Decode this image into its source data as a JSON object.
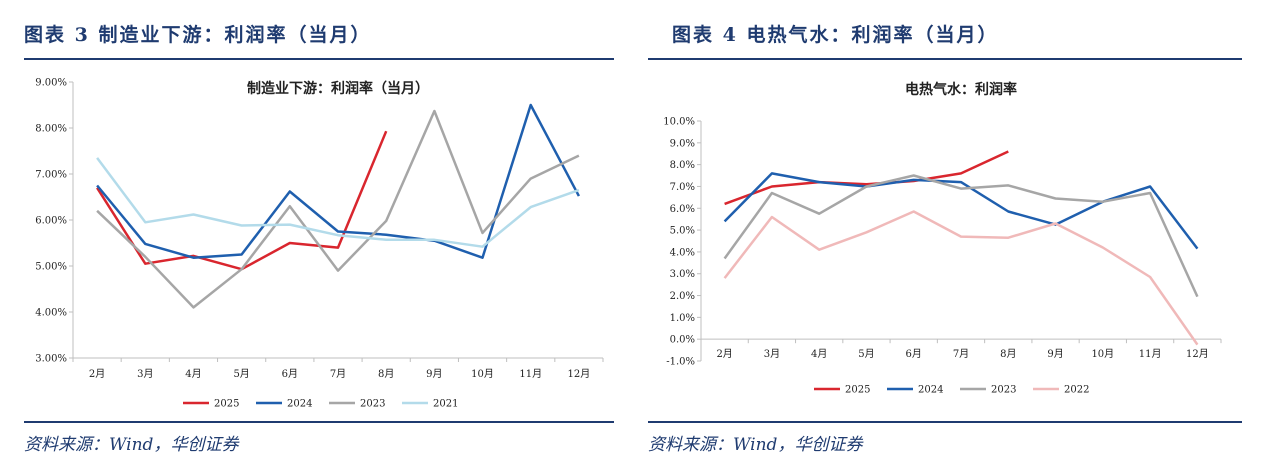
{
  "colors": {
    "y2025": "#d9262e",
    "y2024": "#1f5fae",
    "y2023": "#a6a6a6",
    "y2021": "#b3dbea",
    "y2022": "#f0b9b9",
    "accent": "#1f3b70"
  },
  "left": {
    "fig_title": "图表 3    制造业下游：利润率（当月）",
    "source": "资料来源：Wind，华创证券"
  },
  "right": {
    "fig_title": "图表 4    电热气水：利润率（当月）",
    "source": "资料来源：Wind，华创证券"
  },
  "chart_data": [
    {
      "type": "line",
      "title": "制造业下游：利润率（当月）",
      "categories": [
        "2月",
        "3月",
        "4月",
        "5月",
        "6月",
        "7月",
        "8月",
        "9月",
        "10月",
        "11月",
        "12月"
      ],
      "ylim": [
        3.0,
        9.0
      ],
      "ytick_step": 1.0,
      "ytick_labels": [
        "3.00%",
        "4.00%",
        "5.00%",
        "6.00%",
        "7.00%",
        "8.00%",
        "9.00%"
      ],
      "grid": false,
      "legend": "bottom",
      "series": [
        {
          "name": "2025",
          "color_key": "y2025",
          "values": [
            6.7,
            5.05,
            5.22,
            4.93,
            5.5,
            5.4,
            7.93,
            null,
            null,
            null,
            null
          ]
        },
        {
          "name": "2024",
          "color_key": "y2024",
          "values": [
            6.75,
            5.48,
            5.18,
            5.25,
            6.62,
            5.75,
            5.68,
            5.55,
            5.18,
            8.5,
            6.52
          ]
        },
        {
          "name": "2023",
          "color_key": "y2023",
          "values": [
            6.2,
            5.2,
            4.1,
            4.93,
            6.3,
            4.9,
            5.98,
            8.37,
            5.72,
            6.9,
            7.4
          ]
        },
        {
          "name": "2021",
          "color_key": "y2021",
          "values": [
            7.35,
            5.95,
            6.12,
            5.88,
            5.9,
            5.67,
            5.57,
            5.57,
            5.42,
            6.28,
            6.65
          ]
        }
      ]
    },
    {
      "type": "line",
      "title": "电热气水：利润率",
      "categories": [
        "2月",
        "3月",
        "4月",
        "5月",
        "6月",
        "7月",
        "8月",
        "9月",
        "10月",
        "11月",
        "12月"
      ],
      "ylim": [
        -1.0,
        10.0
      ],
      "ytick_step": 1.0,
      "ytick_labels": [
        "-1.0%",
        "0.0%",
        "1.0%",
        "2.0%",
        "3.0%",
        "4.0%",
        "5.0%",
        "6.0%",
        "7.0%",
        "8.0%",
        "9.0%",
        "10.0%"
      ],
      "grid": false,
      "legend": "bottom",
      "series": [
        {
          "name": "2025",
          "color_key": "y2025",
          "values": [
            6.2,
            7.0,
            7.2,
            7.1,
            7.25,
            7.6,
            8.6,
            null,
            null,
            null,
            null
          ]
        },
        {
          "name": "2024",
          "color_key": "y2024",
          "values": [
            5.4,
            7.6,
            7.2,
            7.0,
            7.3,
            7.2,
            5.85,
            5.25,
            6.3,
            7.0,
            4.15
          ]
        },
        {
          "name": "2023",
          "color_key": "y2023",
          "values": [
            3.7,
            6.7,
            5.75,
            7.0,
            7.5,
            6.9,
            7.05,
            6.45,
            6.3,
            6.7,
            1.95
          ]
        },
        {
          "name": "2022",
          "color_key": "y2022",
          "values": [
            2.8,
            5.6,
            4.1,
            4.9,
            5.85,
            4.7,
            4.65,
            5.3,
            4.2,
            2.85,
            -0.25
          ]
        }
      ]
    }
  ]
}
